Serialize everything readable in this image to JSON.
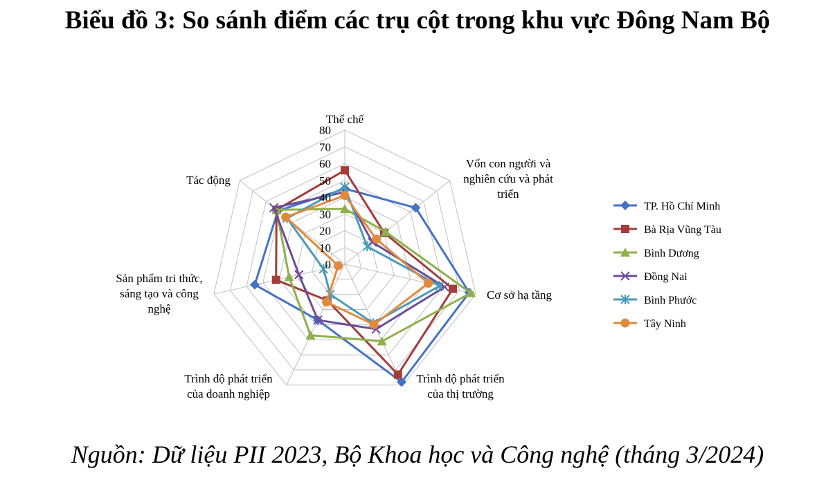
{
  "page": {
    "title": "Biểu đồ 3: So sánh điểm các trụ cột trong khu vực Đông Nam Bộ",
    "source": "Nguồn: Dữ liệu PII 2023, Bộ Khoa học và Công nghệ (tháng 3/2024)"
  },
  "chart_data": {
    "type": "radar",
    "title": "Biểu đồ 3: So sánh điểm các trụ cột trong khu vực Đông Nam Bộ",
    "axes": [
      {
        "name": "Thể chế",
        "lines": [
          "Thể chế"
        ]
      },
      {
        "name": "Vốn con người và nghiên cứu và phát triển",
        "lines": [
          "Vốn con người và",
          "nghiên cứu và phát",
          "triển"
        ]
      },
      {
        "name": "Cơ sở hạ tầng",
        "lines": [
          "Cơ sở hạ tầng"
        ]
      },
      {
        "name": "Trình độ phát triển của thị trường",
        "lines": [
          "Trình độ phát triển",
          "của thị trường"
        ]
      },
      {
        "name": "Trình độ phát triển của doanh nghiệp",
        "lines": [
          "Trình độ phát triển",
          "của doanh nghiệp"
        ]
      },
      {
        "name": "Sản phẩm tri thức, sáng tạo và công nghệ",
        "lines": [
          "Sản phẩm tri thức,",
          "sáng tạo và công",
          "nghệ"
        ]
      },
      {
        "name": "Tác động",
        "lines": [
          "Tác động"
        ]
      }
    ],
    "r_range": [
      0,
      80
    ],
    "ticks": [
      "0",
      "10",
      "20",
      "30",
      "40",
      "50",
      "60",
      "70",
      "80"
    ],
    "grid": true,
    "legend_position": "right",
    "series": [
      {
        "name": "TP. Hồ Chí Minh",
        "color": "#4472c4",
        "marker": "diamond",
        "values": [
          45,
          54,
          76,
          78,
          37,
          55,
          51
        ]
      },
      {
        "name": "Bà Rịa Vũng Tàu",
        "color": "#a33d3a",
        "marker": "square",
        "values": [
          56,
          30,
          66,
          73,
          24,
          42,
          52
        ]
      },
      {
        "name": "Bình Dương",
        "color": "#8fb04a",
        "marker": "triangle",
        "values": [
          33,
          31,
          77,
          51,
          47,
          34,
          52
        ]
      },
      {
        "name": "Đồng Nai",
        "color": "#6b4c9a",
        "marker": "x",
        "values": [
          43,
          21,
          61,
          43,
          37,
          28,
          54
        ]
      },
      {
        "name": "Bình Phước",
        "color": "#4a9ab8",
        "marker": "asterisk",
        "values": [
          46,
          17,
          58,
          39,
          20,
          13,
          44
        ]
      },
      {
        "name": "Tây Ninh",
        "color": "#e08a3c",
        "marker": "circle",
        "values": [
          41,
          24,
          51,
          40,
          25,
          4,
          45
        ]
      }
    ]
  }
}
